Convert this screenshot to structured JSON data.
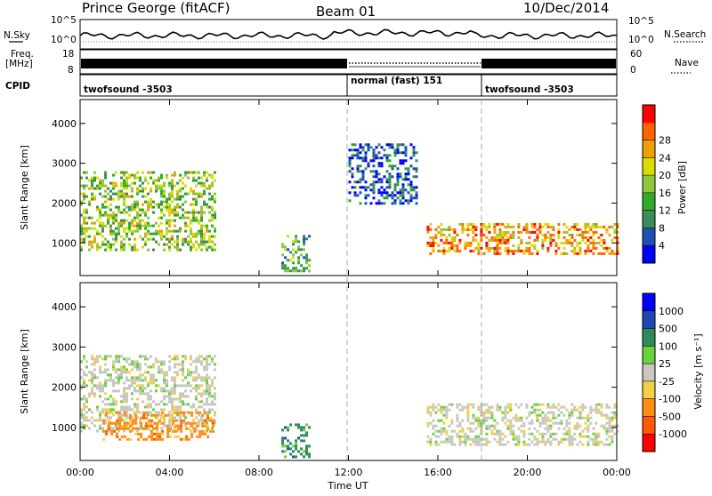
{
  "header": {
    "station": "Prince George (fitACF)",
    "beam": "Beam 01",
    "date": "10/Dec/2014"
  },
  "aux_panels": {
    "nsky_label": "N.Sky",
    "nsky_scale": [
      "10^5",
      "10^0"
    ],
    "nsearch_label": "N.Search",
    "nsearch_scale": [
      "10^5",
      "10^0"
    ],
    "freq_label": "Freq.",
    "freq_unit": "[MHz]",
    "freq_scale": [
      "18",
      "8"
    ],
    "nave_label": "Nave",
    "nave_scale": [
      "60",
      "0"
    ],
    "cpid_label": "CPID",
    "cpid_segments": [
      "twofsound -3503",
      "normal (fast) 151",
      "twofsound -3503"
    ]
  },
  "chart_data": [
    {
      "type": "heatmap",
      "name": "power",
      "ylabel": "Slant Range [km]",
      "xlabel": "",
      "yticks": [
        "1000",
        "2000",
        "3000",
        "4000"
      ],
      "ylim": [
        180,
        4600
      ],
      "xlim": [
        0,
        24
      ],
      "colorbar_label": "Power [dB]",
      "colorbar_ticks": [
        "4",
        "8",
        "12",
        "16",
        "20",
        "24",
        "28"
      ],
      "colorbar_colors": [
        "#0000ff",
        "#1e4fb4",
        "#3c8c5a",
        "#2faa2a",
        "#8cc83c",
        "#dcdc00",
        "#f0a000",
        "#ff6400",
        "#ff0000"
      ],
      "features": [
        {
          "t_start": 0.0,
          "t_end": 6.0,
          "range_km": [
            800,
            2800
          ],
          "db": 18
        },
        {
          "t_start": 9.0,
          "t_end": 10.2,
          "range_km": [
            300,
            1200
          ],
          "db": 14
        },
        {
          "t_start": 12.0,
          "t_end": 15.0,
          "range_km": [
            2000,
            3500
          ],
          "db": 8
        },
        {
          "t_start": 15.5,
          "t_end": 24.0,
          "range_km": [
            700,
            1500
          ],
          "db": 28
        }
      ]
    },
    {
      "type": "heatmap",
      "name": "velocity",
      "ylabel": "Slant Range [km]",
      "xlabel": "Time UT",
      "yticks": [
        "1000",
        "2000",
        "3000",
        "4000"
      ],
      "ylim": [
        180,
        4600
      ],
      "xlim": [
        0,
        24
      ],
      "xticks": [
        "00:00",
        "04:00",
        "08:00",
        "12:00",
        "16:00",
        "20:00",
        "00:00"
      ],
      "colorbar_label": "Velocity [m s⁻¹]",
      "colorbar_ticks": [
        "1000",
        "500",
        "100",
        "25",
        "-25",
        "-100",
        "-500",
        "-1000"
      ],
      "colorbar_colors": [
        "#0000ff",
        "#1e46b4",
        "#2e8a5a",
        "#6ad23a",
        "#c8c8c0",
        "#f5d040",
        "#ff8c14",
        "#ff5a00",
        "#ff0000"
      ],
      "features": [
        {
          "t_start": 0.0,
          "t_end": 6.0,
          "range_km": [
            900,
            2800
          ],
          "velocity": 0
        },
        {
          "t_start": 1.0,
          "t_end": 6.0,
          "range_km": [
            700,
            1400
          ],
          "velocity": -300
        },
        {
          "t_start": 9.0,
          "t_end": 10.2,
          "range_km": [
            300,
            1100
          ],
          "velocity": 60
        },
        {
          "t_start": 15.5,
          "t_end": 24.0,
          "range_km": [
            600,
            1600
          ],
          "velocity": 0
        }
      ]
    }
  ]
}
